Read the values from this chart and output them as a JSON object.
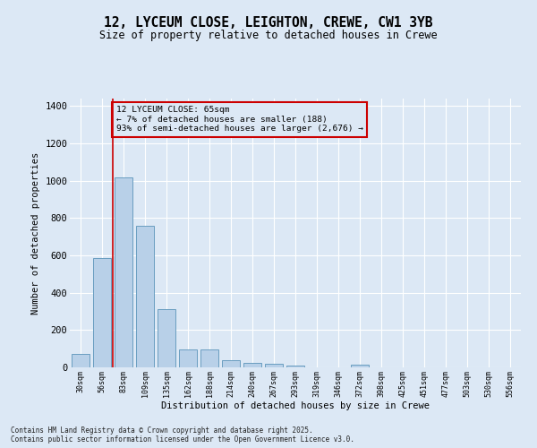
{
  "title": "12, LYCEUM CLOSE, LEIGHTON, CREWE, CW1 3YB",
  "subtitle": "Size of property relative to detached houses in Crewe",
  "xlabel": "Distribution of detached houses by size in Crewe",
  "ylabel": "Number of detached properties",
  "bar_color": "#b8d0e8",
  "bar_edge_color": "#6a9ec0",
  "background_color": "#dce8f5",
  "grid_color": "#ffffff",
  "vline_color": "#cc0000",
  "annotation_text": "12 LYCEUM CLOSE: 65sqm\n← 7% of detached houses are smaller (188)\n93% of semi-detached houses are larger (2,676) →",
  "annotation_box_color": "#cc0000",
  "footnote": "Contains HM Land Registry data © Crown copyright and database right 2025.\nContains public sector information licensed under the Open Government Licence v3.0.",
  "categories": [
    "30sqm",
    "56sqm",
    "83sqm",
    "109sqm",
    "135sqm",
    "162sqm",
    "188sqm",
    "214sqm",
    "240sqm",
    "267sqm",
    "293sqm",
    "319sqm",
    "346sqm",
    "372sqm",
    "398sqm",
    "425sqm",
    "451sqm",
    "477sqm",
    "503sqm",
    "530sqm",
    "556sqm"
  ],
  "values": [
    70,
    585,
    1020,
    760,
    310,
    95,
    95,
    40,
    22,
    17,
    10,
    0,
    0,
    15,
    0,
    0,
    0,
    0,
    0,
    0,
    0
  ],
  "ylim": [
    0,
    1440
  ],
  "yticks": [
    0,
    200,
    400,
    600,
    800,
    1000,
    1200,
    1400
  ],
  "vline_x_index": 1.5
}
